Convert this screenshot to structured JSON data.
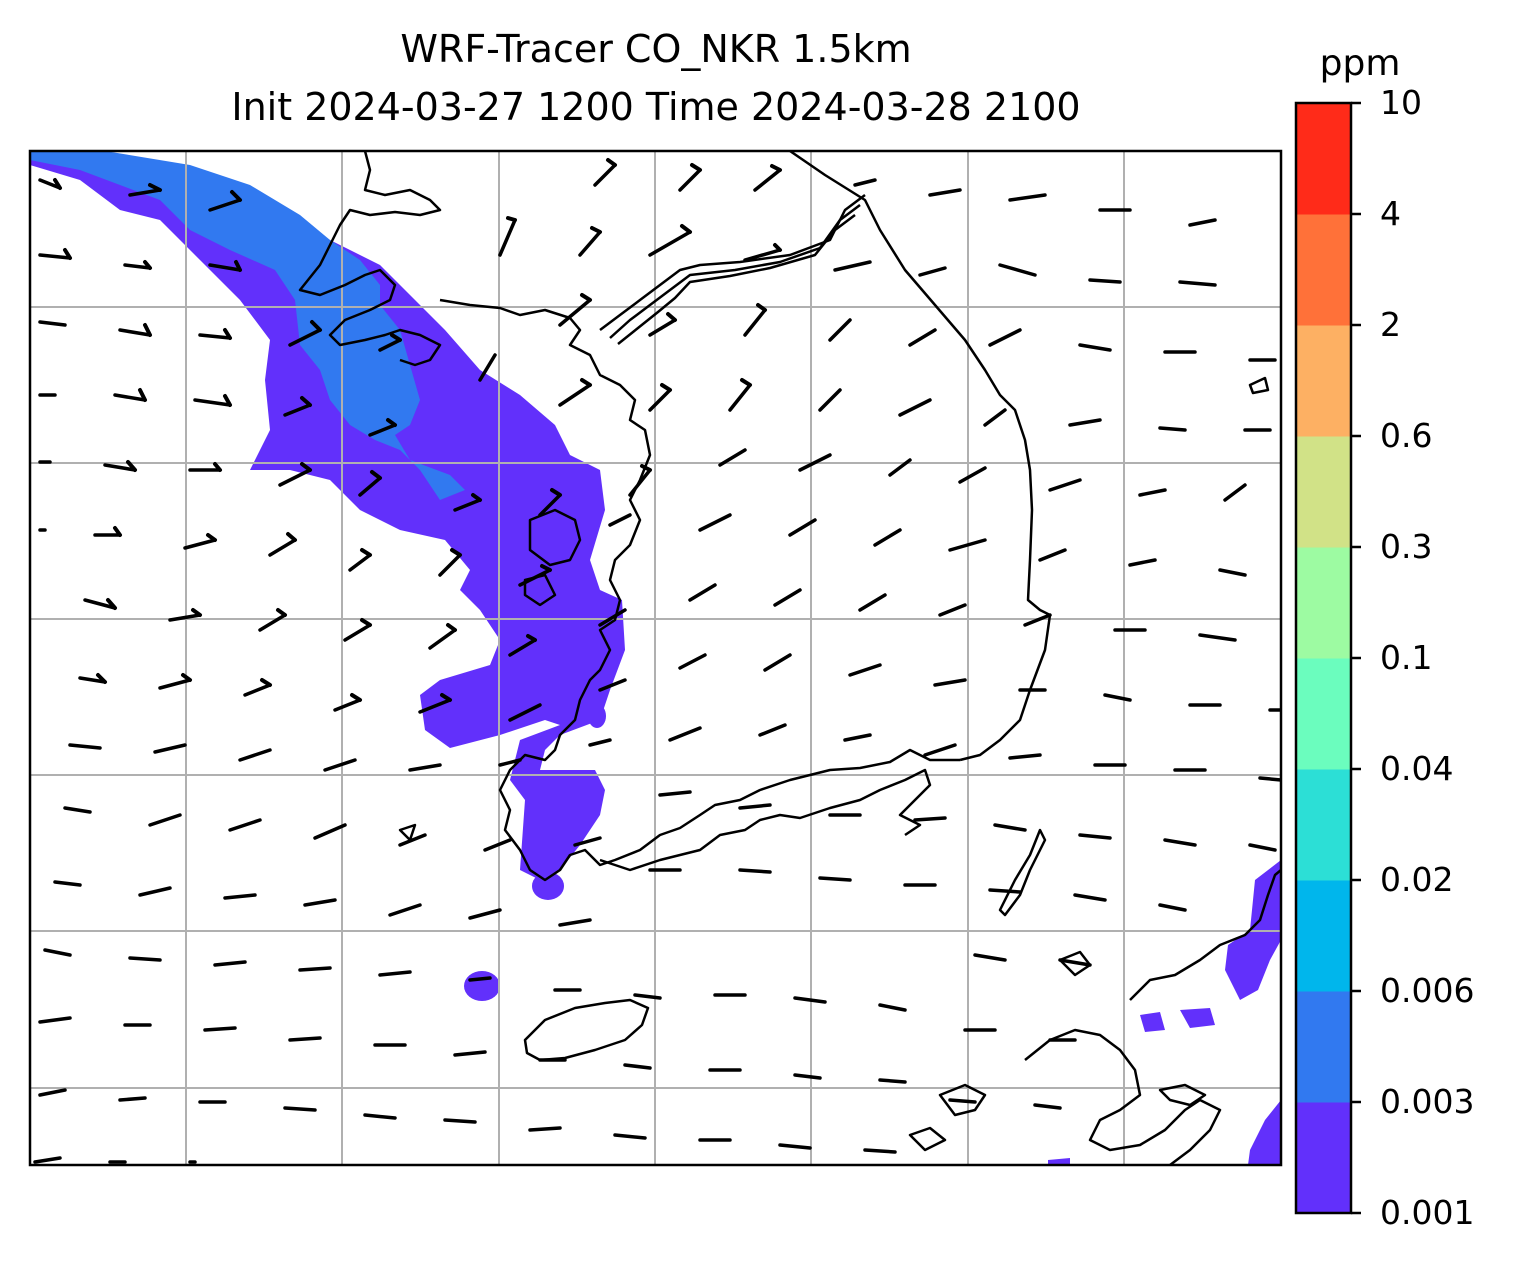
{
  "title": {
    "line1": "WRF-Tracer CO_NKR 1.5km",
    "line2": "Init 2024-03-27 1200 Time 2024-03-28 2100"
  },
  "colorbar": {
    "unit": "ppm",
    "levels": [
      "0.001",
      "0.003",
      "0.006",
      "0.02",
      "0.04",
      "0.1",
      "0.3",
      "0.6",
      "2",
      "4",
      "10"
    ],
    "colors": [
      "#6230fb",
      "#3179f0",
      "#00b6ec",
      "#2cdfd6",
      "#6bfdbe",
      "#9dfba2",
      "#d1e287",
      "#fdb063",
      "#ff7139",
      "#ff2b19"
    ]
  },
  "map": {
    "field": "CO_NKR tracer",
    "grid": "on",
    "plume_color": "#6230fb",
    "plume_core_color": "#3179f0",
    "coastline_color": "#000000",
    "wind_barbs": "black"
  }
}
